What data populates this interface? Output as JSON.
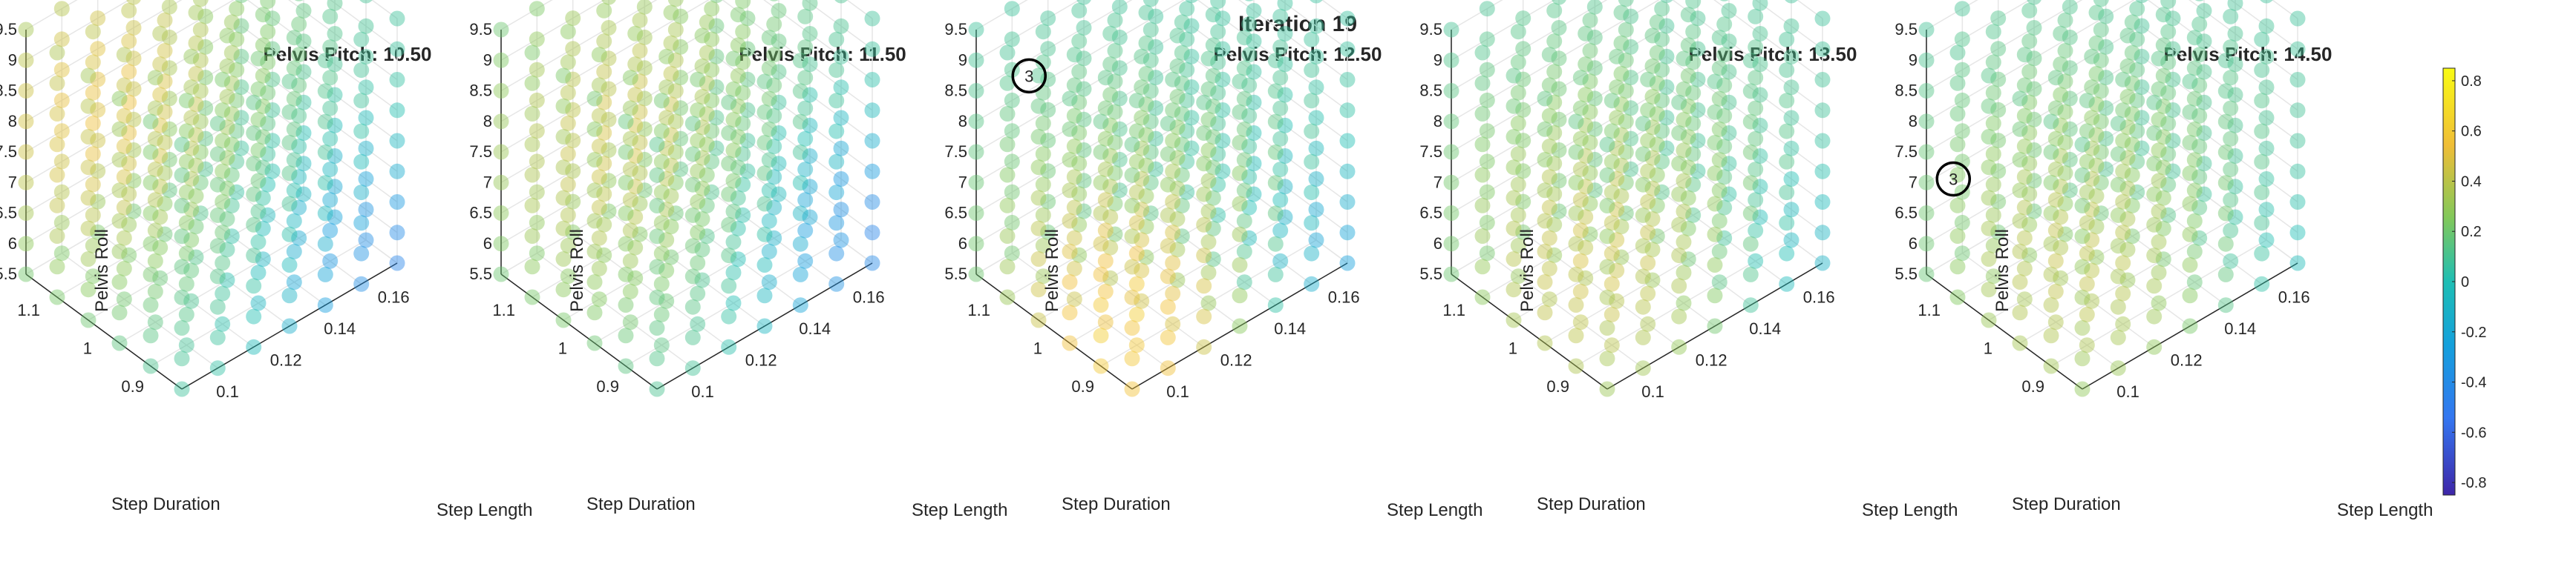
{
  "figure_title": "Iteration 19",
  "chart_data": {
    "type": "scatter3d",
    "title": "Iteration 19",
    "axes_labels": {
      "x": "Step Length",
      "y": "Step Duration",
      "z": "Pelvis Roll"
    },
    "x_ticks": [
      "0.1",
      "0.12",
      "0.14",
      "0.16"
    ],
    "y_ticks": [
      "0.9",
      "1",
      "1.1"
    ],
    "z_ticks": [
      "5.5",
      "6",
      "6.5",
      "7",
      "7.5",
      "8",
      "8.5",
      "9",
      "9.5"
    ],
    "x_range": [
      0.09,
      0.17
    ],
    "y_range": [
      0.85,
      1.15
    ],
    "z_range": [
      5.5,
      9.5
    ],
    "grid": true,
    "colorbar": {
      "ticks": [
        "0.8",
        "0.6",
        "0.4",
        "0.2",
        "0",
        "-0.2",
        "-0.4",
        "-0.6",
        "-0.8"
      ],
      "range": [
        -0.85,
        0.85
      ]
    },
    "panels": [
      {
        "title": "Pelvis Pitch: 10.50",
        "peak": {
          "x": 0.11,
          "y": 1.1,
          "z": 8.0,
          "value": 0.55
        },
        "low": {
          "x": 0.17,
          "y": 0.85,
          "z": 5.5,
          "value": -0.45
        },
        "marker": null
      },
      {
        "title": "Pelvis Pitch: 11.50",
        "peak": {
          "x": 0.12,
          "y": 1.05,
          "z": 7.5,
          "value": 0.5
        },
        "low": {
          "x": 0.17,
          "y": 0.85,
          "z": 6.0,
          "value": -0.5
        },
        "marker": null
      },
      {
        "title": "Pelvis Pitch: 12.50",
        "peak": {
          "x": 0.1,
          "y": 0.9,
          "z": 6.0,
          "value": 0.65
        },
        "low": {
          "x": 0.17,
          "y": 0.85,
          "z": 5.5,
          "value": -0.35
        },
        "marker": {
          "label": "3",
          "x": 0.1,
          "y": 1.1,
          "z": 8.8
        }
      },
      {
        "title": "Pelvis Pitch: 13.50",
        "peak": {
          "x": 0.11,
          "y": 0.95,
          "z": 6.5,
          "value": 0.5
        },
        "low": {
          "x": 0.17,
          "y": 0.85,
          "z": 5.5,
          "value": -0.2
        },
        "marker": null
      },
      {
        "title": "Pelvis Pitch: 14.50",
        "peak": {
          "x": 0.11,
          "y": 0.95,
          "z": 6.5,
          "value": 0.45
        },
        "low": {
          "x": 0.17,
          "y": 0.85,
          "z": 5.5,
          "value": -0.1
        },
        "marker": {
          "label": "3",
          "x": 0.1,
          "y": 1.15,
          "z": 6.8
        }
      }
    ]
  }
}
